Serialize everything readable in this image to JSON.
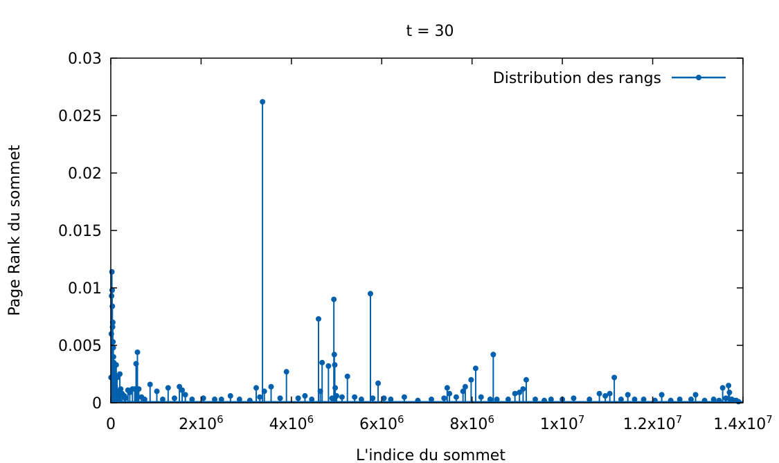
{
  "chart_data": {
    "type": "line",
    "title": "t = 30",
    "xlabel": "L'indice du sommet",
    "ylabel": "Page Rank du sommet",
    "xlim": [
      0,
      14000000
    ],
    "ylim": [
      0,
      0.03
    ],
    "x_ticks": [
      {
        "value": 0,
        "label": "0"
      },
      {
        "value": 2000000,
        "label": "2x10",
        "exp": "6"
      },
      {
        "value": 4000000,
        "label": "4x10",
        "exp": "6"
      },
      {
        "value": 6000000,
        "label": "6x10",
        "exp": "6"
      },
      {
        "value": 8000000,
        "label": "8x10",
        "exp": "6"
      },
      {
        "value": 10000000,
        "label": "1x10",
        "exp": "7"
      },
      {
        "value": 12000000,
        "label": "1.2x10",
        "exp": "7"
      },
      {
        "value": 14000000,
        "label": "1.4x10",
        "exp": "7"
      }
    ],
    "y_ticks": [
      {
        "value": 0,
        "label": "0"
      },
      {
        "value": 0.005,
        "label": "0.005"
      },
      {
        "value": 0.01,
        "label": "0.01"
      },
      {
        "value": 0.015,
        "label": "0.015"
      },
      {
        "value": 0.02,
        "label": "0.02"
      },
      {
        "value": 0.025,
        "label": "0.025"
      },
      {
        "value": 0.03,
        "label": "0.03"
      }
    ],
    "legend": {
      "position": "top-right"
    },
    "grid": false,
    "color": "#0060ad",
    "series": [
      {
        "name": "Distribution des rangs",
        "style": "impulses-with-points",
        "points": [
          [
            5000,
            0.0022
          ],
          [
            12000,
            0.006
          ],
          [
            18000,
            0.0093
          ],
          [
            25000,
            0.0114
          ],
          [
            30000,
            0.0098
          ],
          [
            35000,
            0.0084
          ],
          [
            40000,
            0.0066
          ],
          [
            45000,
            0.007
          ],
          [
            50000,
            0.0053
          ],
          [
            55000,
            0.0048
          ],
          [
            60000,
            0.004
          ],
          [
            65000,
            0.0035
          ],
          [
            70000,
            0.0029
          ],
          [
            80000,
            0.0025
          ],
          [
            90000,
            0.0018
          ],
          [
            100000,
            0.0014
          ],
          [
            120000,
            0.0033
          ],
          [
            140000,
            0.0022
          ],
          [
            160000,
            0.001
          ],
          [
            180000,
            0.0007
          ],
          [
            200000,
            0.0025
          ],
          [
            220000,
            0.0012
          ],
          [
            250000,
            0.0008
          ],
          [
            300000,
            0.0006
          ],
          [
            320000,
            0.0004
          ],
          [
            380000,
            0.0011
          ],
          [
            420000,
            0.0009
          ],
          [
            480000,
            0.0012
          ],
          [
            530000,
            0.0012
          ],
          [
            560000,
            0.0034
          ],
          [
            590000,
            0.0044
          ],
          [
            620000,
            0.0012
          ],
          [
            680000,
            0.0005
          ],
          [
            750000,
            0.0003
          ],
          [
            870000,
            0.0016
          ],
          [
            1020000,
            0.001
          ],
          [
            1150000,
            0.0003
          ],
          [
            1270000,
            0.0013
          ],
          [
            1410000,
            0.0004
          ],
          [
            1520000,
            0.0014
          ],
          [
            1580000,
            0.0011
          ],
          [
            1650000,
            0.0007
          ],
          [
            1800000,
            0.0003
          ],
          [
            2050000,
            0.0004
          ],
          [
            2300000,
            0.0003
          ],
          [
            2450000,
            0.0003
          ],
          [
            2650000,
            0.0006
          ],
          [
            2850000,
            0.0003
          ],
          [
            3080000,
            0.0002
          ],
          [
            3220000,
            0.0013
          ],
          [
            3300000,
            0.0005
          ],
          [
            3360000,
            0.0262
          ],
          [
            3400000,
            0.001
          ],
          [
            3550000,
            0.0014
          ],
          [
            3750000,
            0.0004
          ],
          [
            3890000,
            0.0027
          ],
          [
            4150000,
            0.0004
          ],
          [
            4300000,
            0.0006
          ],
          [
            4450000,
            0.0003
          ],
          [
            4600000,
            0.0073
          ],
          [
            4640000,
            0.001
          ],
          [
            4680000,
            0.0035
          ],
          [
            4820000,
            0.0032
          ],
          [
            4900000,
            0.0004
          ],
          [
            4940000,
            0.009
          ],
          [
            4950000,
            0.0042
          ],
          [
            4960000,
            0.0033
          ],
          [
            4970000,
            0.0013
          ],
          [
            5000000,
            0.0006
          ],
          [
            5120000,
            0.0005
          ],
          [
            5240000,
            0.0023
          ],
          [
            5400000,
            0.0005
          ],
          [
            5550000,
            0.0003
          ],
          [
            5750000,
            0.0095
          ],
          [
            5800000,
            0.0004
          ],
          [
            5920000,
            0.0017
          ],
          [
            6050000,
            0.0004
          ],
          [
            6200000,
            0.0003
          ],
          [
            6500000,
            0.0005
          ],
          [
            6800000,
            0.0002
          ],
          [
            7100000,
            0.0003
          ],
          [
            7380000,
            0.0004
          ],
          [
            7450000,
            0.0013
          ],
          [
            7500000,
            0.0008
          ],
          [
            7650000,
            0.0005
          ],
          [
            7800000,
            0.001
          ],
          [
            7850000,
            0.0014
          ],
          [
            7980000,
            0.002
          ],
          [
            8080000,
            0.003
          ],
          [
            8200000,
            0.0005
          ],
          [
            8400000,
            0.0003
          ],
          [
            8470000,
            0.0042
          ],
          [
            8550000,
            0.0003
          ],
          [
            8800000,
            0.0003
          ],
          [
            8950000,
            0.0008
          ],
          [
            9050000,
            0.0009
          ],
          [
            9130000,
            0.0012
          ],
          [
            9200000,
            0.002
          ],
          [
            9400000,
            0.0003
          ],
          [
            9600000,
            0.0002
          ],
          [
            9750000,
            0.0003
          ],
          [
            10000000,
            0.0003
          ],
          [
            10250000,
            0.0004
          ],
          [
            10600000,
            0.0003
          ],
          [
            10820000,
            0.0008
          ],
          [
            10950000,
            0.0006
          ],
          [
            11050000,
            0.0008
          ],
          [
            11150000,
            0.0022
          ],
          [
            11300000,
            0.0003
          ],
          [
            11450000,
            0.0007
          ],
          [
            11600000,
            0.0003
          ],
          [
            11800000,
            0.0003
          ],
          [
            12050000,
            0.0002
          ],
          [
            12200000,
            0.0007
          ],
          [
            12400000,
            0.0002
          ],
          [
            12600000,
            0.0003
          ],
          [
            12850000,
            0.0003
          ],
          [
            12950000,
            0.0007
          ],
          [
            13150000,
            0.0002
          ],
          [
            13350000,
            0.0003
          ],
          [
            13470000,
            0.0002
          ],
          [
            13550000,
            0.0013
          ],
          [
            13620000,
            0.0004
          ],
          [
            13680000,
            0.0015
          ],
          [
            13700000,
            0.0009
          ],
          [
            13750000,
            0.0003
          ],
          [
            13800000,
            0.0002
          ],
          [
            13850000,
            0.0002
          ],
          [
            13900000,
            0.0001
          ]
        ]
      }
    ]
  }
}
